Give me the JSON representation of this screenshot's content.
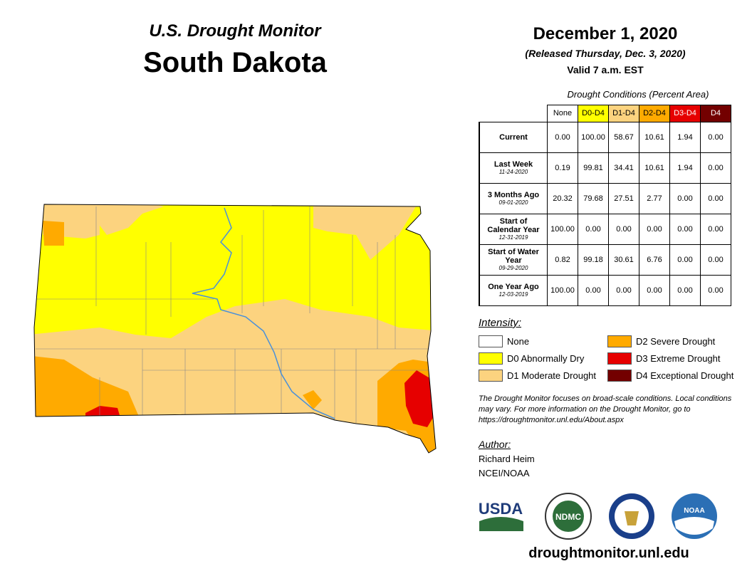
{
  "header": {
    "subtitle": "U.S. Drought Monitor",
    "title": "South Dakota"
  },
  "date": {
    "title": "December 1, 2020",
    "released": "(Released Thursday, Dec. 3, 2020)",
    "valid": "Valid 7 a.m. EST"
  },
  "table": {
    "caption": "Drought Conditions (Percent Area)",
    "columns": [
      {
        "label": "None",
        "color": "#ffffff",
        "text": "#000000"
      },
      {
        "label": "D0-D4",
        "color": "#ffff00",
        "text": "#000000"
      },
      {
        "label": "D1-D4",
        "color": "#fcd37f",
        "text": "#000000"
      },
      {
        "label": "D2-D4",
        "color": "#ffaa00",
        "text": "#000000"
      },
      {
        "label": "D3-D4",
        "color": "#e60000",
        "text": "#ffffff"
      },
      {
        "label": "D4",
        "color": "#730000",
        "text": "#ffffff"
      }
    ],
    "rows": [
      {
        "label": "Current",
        "values": [
          "0.00",
          "100.00",
          "58.67",
          "10.61",
          "1.94",
          "0.00"
        ]
      },
      {
        "label": "Last Week",
        "date": "11-24-2020",
        "values": [
          "0.19",
          "99.81",
          "34.41",
          "10.61",
          "1.94",
          "0.00"
        ]
      },
      {
        "label": "3 Months Ago",
        "date": "09-01-2020",
        "values": [
          "20.32",
          "79.68",
          "27.51",
          "2.77",
          "0.00",
          "0.00"
        ]
      },
      {
        "label": "Start of Calendar Year",
        "date": "12-31-2019",
        "values": [
          "100.00",
          "0.00",
          "0.00",
          "0.00",
          "0.00",
          "0.00"
        ]
      },
      {
        "label": "Start of Water Year",
        "date": "09-29-2020",
        "values": [
          "0.82",
          "99.18",
          "30.61",
          "6.76",
          "0.00",
          "0.00"
        ]
      },
      {
        "label": "One Year Ago",
        "date": "12-03-2019",
        "values": [
          "100.00",
          "0.00",
          "0.00",
          "0.00",
          "0.00",
          "0.00"
        ]
      }
    ]
  },
  "legend": {
    "title": "Intensity:",
    "items": [
      {
        "label": "None",
        "color": "#ffffff"
      },
      {
        "label": "D0 Abnormally Dry",
        "color": "#ffff00"
      },
      {
        "label": "D1 Moderate Drought",
        "color": "#fcd37f"
      },
      {
        "label": "D2 Severe Drought",
        "color": "#ffaa00"
      },
      {
        "label": "D3 Extreme Drought",
        "color": "#e60000"
      },
      {
        "label": "D4 Exceptional Drought",
        "color": "#730000"
      }
    ]
  },
  "note": "The Drought Monitor focuses on broad-scale conditions. Local conditions may vary. For more information on the Drought Monitor, go to https://droughtmonitor.unl.edu/About.aspx",
  "author": {
    "heading": "Author:",
    "name": "Richard Heim",
    "org": "NCEI/NOAA"
  },
  "logos": [
    "USDA",
    "NDMC",
    "NOAA"
  ],
  "footer": "droughtmonitor.unl.edu"
}
